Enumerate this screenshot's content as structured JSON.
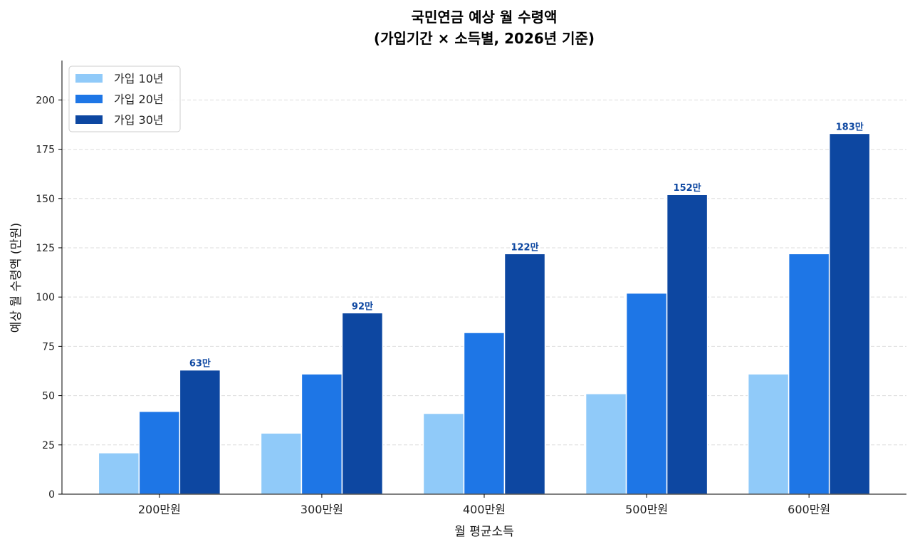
{
  "chart_data": {
    "type": "bar",
    "title": "국민연금 예상 월 수령액",
    "subtitle": "(가입기간 × 소득별, 2026년 기준)",
    "xlabel": "월 평균소득",
    "ylabel": "예상 월 수령액 (만원)",
    "categories": [
      "200만원",
      "300만원",
      "400만원",
      "500만원",
      "600만원"
    ],
    "series": [
      {
        "name": "가입 10년",
        "color": "#90CAF9",
        "values": [
          21,
          31,
          41,
          51,
          61
        ]
      },
      {
        "name": "가입 20년",
        "color": "#1E76E6",
        "values": [
          42,
          61,
          82,
          102,
          122
        ]
      },
      {
        "name": "가입 30년",
        "color": "#0D47A1",
        "values": [
          63,
          92,
          122,
          152,
          183
        ]
      }
    ],
    "data_labels": [
      "63만",
      "92만",
      "122만",
      "152만",
      "183만"
    ],
    "data_label_color": "#0D47A1",
    "ylim": [
      0,
      220
    ],
    "yticks": [
      0,
      25,
      50,
      75,
      100,
      125,
      150,
      175,
      200
    ],
    "grid": "y-dashed",
    "legend_placement": "top-left"
  }
}
